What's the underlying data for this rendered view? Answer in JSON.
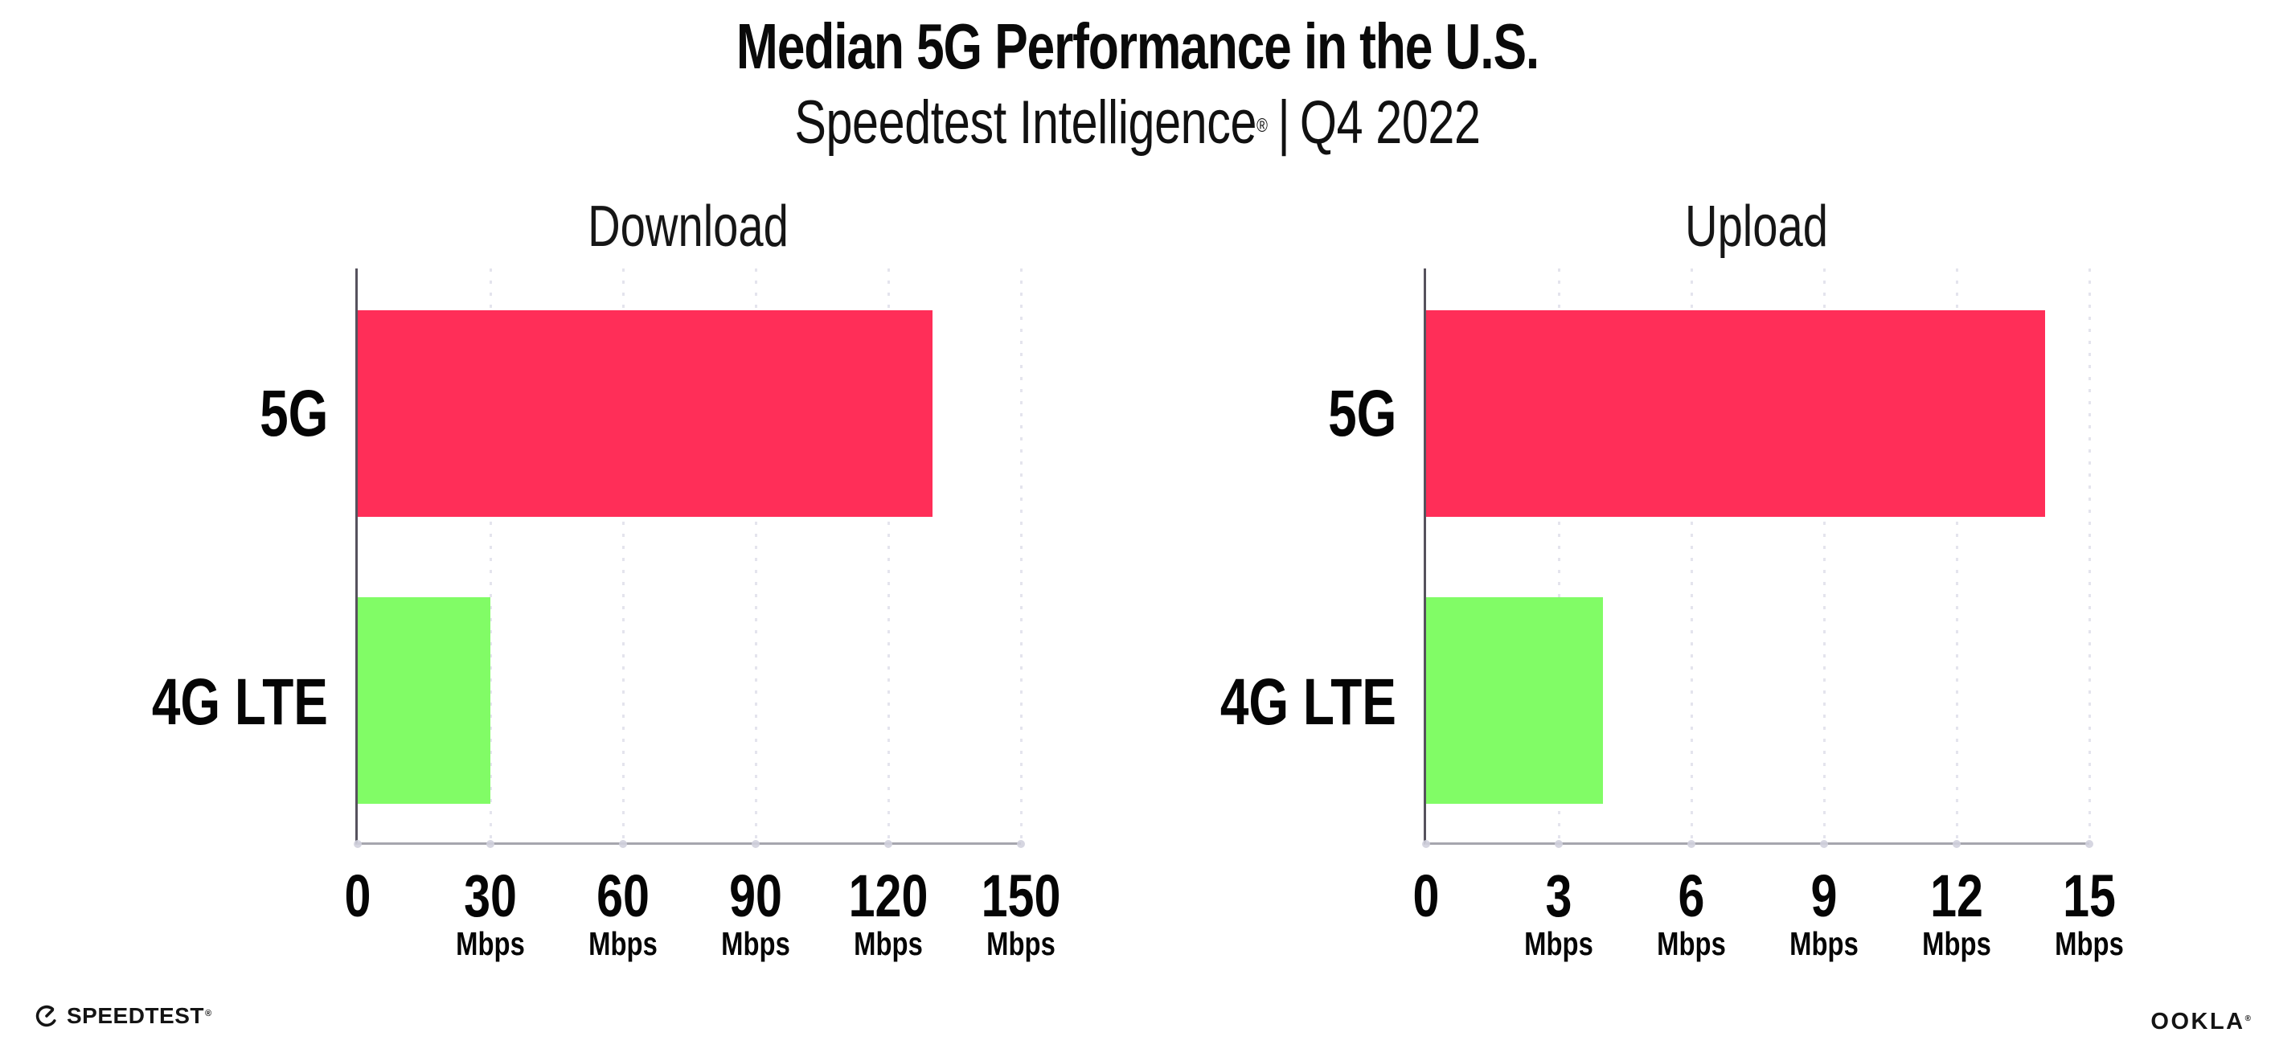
{
  "header": {
    "title": "Median 5G Performance in the U.S.",
    "subtitle_brand": "Speedtest Intelligence",
    "subtitle_reg": "®",
    "subtitle_divider": "|",
    "subtitle_period": "Q4 2022"
  },
  "chart_data": [
    {
      "type": "bar",
      "orientation": "horizontal",
      "title": "Download",
      "categories": [
        "5G",
        "4G LTE"
      ],
      "values": [
        130,
        30
      ],
      "unit": "Mbps",
      "xlim": [
        0,
        150
      ],
      "xticks": [
        0,
        30,
        60,
        90,
        120,
        150
      ],
      "tick_unit": "Mbps",
      "bar_colors": [
        "#ff2e58",
        "#81fc66"
      ],
      "grid": "dotted-vertical",
      "legend": "none"
    },
    {
      "type": "bar",
      "orientation": "horizontal",
      "title": "Upload",
      "categories": [
        "5G",
        "4G LTE"
      ],
      "values": [
        14,
        4
      ],
      "unit": "Mbps",
      "xlim": [
        0,
        15
      ],
      "xticks": [
        0,
        3,
        6,
        9,
        12,
        15
      ],
      "tick_unit": "Mbps",
      "bar_colors": [
        "#ff2e58",
        "#81fc66"
      ],
      "grid": "dotted-vertical",
      "legend": "none"
    }
  ],
  "footer": {
    "speedtest_logo_text": "SPEEDTEST",
    "speedtest_reg": "®",
    "ookla_logo_text": "OOKLA",
    "ookla_reg": "®"
  }
}
